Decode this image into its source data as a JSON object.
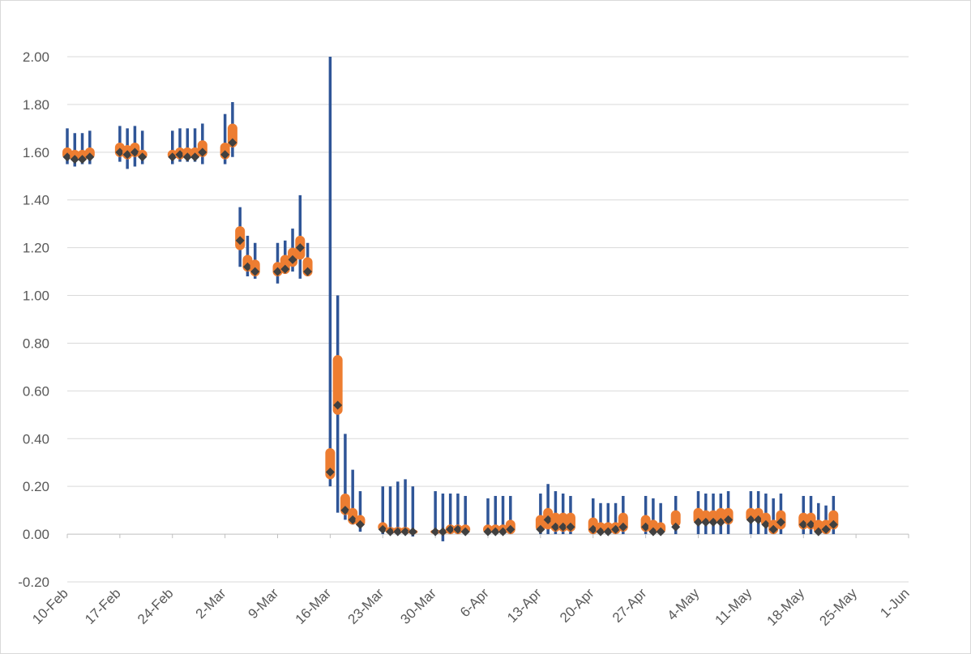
{
  "chart_data": {
    "type": "candlestick-boxplot",
    "title": "",
    "xlabel": "",
    "ylabel": "",
    "ylim": [
      -0.2,
      2.0
    ],
    "xlim": [
      "2020-02-10",
      "2020-06-01"
    ],
    "y_ticks": [
      "-0.20",
      "0.00",
      "0.20",
      "0.40",
      "0.60",
      "0.80",
      "1.00",
      "1.20",
      "1.40",
      "1.60",
      "1.80",
      "2.00"
    ],
    "x_ticks": [
      "10-Feb",
      "17-Feb",
      "24-Feb",
      "2-Mar",
      "9-Mar",
      "16-Mar",
      "23-Mar",
      "30-Mar",
      "6-Apr",
      "13-Apr",
      "20-Apr",
      "27-Apr",
      "4-May",
      "11-May",
      "18-May",
      "25-May",
      "1-Jun"
    ],
    "grid": "horizontal",
    "colors": {
      "whisker": "#2f5597",
      "box": "#ed7d31",
      "marker": "#404040",
      "grid": "#d9d9d9",
      "axis": "#bfbfbf",
      "text": "#595959"
    },
    "series": [
      {
        "date": "2020-02-10",
        "low": 1.55,
        "high": 1.7,
        "q1": 1.57,
        "q3": 1.62,
        "value": 1.58
      },
      {
        "date": "2020-02-11",
        "low": 1.54,
        "high": 1.68,
        "q1": 1.56,
        "q3": 1.61,
        "value": 1.57
      },
      {
        "date": "2020-02-12",
        "low": 1.55,
        "high": 1.68,
        "q1": 1.56,
        "q3": 1.61,
        "value": 1.57
      },
      {
        "date": "2020-02-13",
        "low": 1.55,
        "high": 1.69,
        "q1": 1.57,
        "q3": 1.62,
        "value": 1.58
      },
      {
        "date": "2020-02-17",
        "low": 1.56,
        "high": 1.71,
        "q1": 1.58,
        "q3": 1.64,
        "value": 1.6
      },
      {
        "date": "2020-02-18",
        "low": 1.53,
        "high": 1.7,
        "q1": 1.57,
        "q3": 1.63,
        "value": 1.59
      },
      {
        "date": "2020-02-19",
        "low": 1.54,
        "high": 1.71,
        "q1": 1.58,
        "q3": 1.64,
        "value": 1.6
      },
      {
        "date": "2020-02-20",
        "low": 1.55,
        "high": 1.69,
        "q1": 1.57,
        "q3": 1.61,
        "value": 1.58
      },
      {
        "date": "2020-02-24",
        "low": 1.55,
        "high": 1.69,
        "q1": 1.57,
        "q3": 1.61,
        "value": 1.58
      },
      {
        "date": "2020-02-25",
        "low": 1.56,
        "high": 1.7,
        "q1": 1.57,
        "q3": 1.62,
        "value": 1.59
      },
      {
        "date": "2020-02-26",
        "low": 1.56,
        "high": 1.7,
        "q1": 1.57,
        "q3": 1.62,
        "value": 1.58
      },
      {
        "date": "2020-02-27",
        "low": 1.56,
        "high": 1.7,
        "q1": 1.57,
        "q3": 1.62,
        "value": 1.58
      },
      {
        "date": "2020-02-28",
        "low": 1.55,
        "high": 1.72,
        "q1": 1.58,
        "q3": 1.65,
        "value": 1.6
      },
      {
        "date": "2020-03-02",
        "low": 1.55,
        "high": 1.76,
        "q1": 1.57,
        "q3": 1.64,
        "value": 1.59
      },
      {
        "date": "2020-03-03",
        "low": 1.58,
        "high": 1.81,
        "q1": 1.62,
        "q3": 1.72,
        "value": 1.64
      },
      {
        "date": "2020-03-04",
        "low": 1.12,
        "high": 1.37,
        "q1": 1.19,
        "q3": 1.29,
        "value": 1.23
      },
      {
        "date": "2020-03-05",
        "low": 1.08,
        "high": 1.25,
        "q1": 1.1,
        "q3": 1.17,
        "value": 1.12
      },
      {
        "date": "2020-03-06",
        "low": 1.07,
        "high": 1.22,
        "q1": 1.08,
        "q3": 1.15,
        "value": 1.1
      },
      {
        "date": "2020-03-09",
        "low": 1.05,
        "high": 1.22,
        "q1": 1.08,
        "q3": 1.14,
        "value": 1.1
      },
      {
        "date": "2020-03-10",
        "low": 1.09,
        "high": 1.23,
        "q1": 1.09,
        "q3": 1.17,
        "value": 1.11
      },
      {
        "date": "2020-03-11",
        "low": 1.1,
        "high": 1.28,
        "q1": 1.12,
        "q3": 1.2,
        "value": 1.15
      },
      {
        "date": "2020-03-12",
        "low": 1.07,
        "high": 1.42,
        "q1": 1.15,
        "q3": 1.25,
        "value": 1.2
      },
      {
        "date": "2020-03-13",
        "low": 1.08,
        "high": 1.22,
        "q1": 1.08,
        "q3": 1.16,
        "value": 1.1
      },
      {
        "date": "2020-03-16",
        "low": 0.2,
        "high": 2.0,
        "q1": 0.23,
        "q3": 0.36,
        "value": 0.26
      },
      {
        "date": "2020-03-17",
        "low": 0.09,
        "high": 1.0,
        "q1": 0.5,
        "q3": 0.75,
        "value": 0.54
      },
      {
        "date": "2020-03-18",
        "low": 0.06,
        "high": 0.42,
        "q1": 0.08,
        "q3": 0.17,
        "value": 0.1
      },
      {
        "date": "2020-03-19",
        "low": 0.04,
        "high": 0.27,
        "q1": 0.04,
        "q3": 0.11,
        "value": 0.06
      },
      {
        "date": "2020-03-20",
        "low": 0.01,
        "high": 0.18,
        "q1": 0.03,
        "q3": 0.08,
        "value": 0.04
      },
      {
        "date": "2020-03-23",
        "low": 0.0,
        "high": 0.2,
        "q1": 0.01,
        "q3": 0.05,
        "value": 0.02
      },
      {
        "date": "2020-03-24",
        "low": 0.0,
        "high": 0.2,
        "q1": 0.0,
        "q3": 0.03,
        "value": 0.01
      },
      {
        "date": "2020-03-25",
        "low": 0.0,
        "high": 0.22,
        "q1": 0.0,
        "q3": 0.03,
        "value": 0.01
      },
      {
        "date": "2020-03-26",
        "low": 0.0,
        "high": 0.23,
        "q1": 0.0,
        "q3": 0.03,
        "value": 0.01
      },
      {
        "date": "2020-03-27",
        "low": -0.01,
        "high": 0.2,
        "q1": 0.0,
        "q3": 0.02,
        "value": 0.01
      },
      {
        "date": "2020-03-30",
        "low": 0.0,
        "high": 0.18,
        "q1": 0.0,
        "q3": 0.02,
        "value": 0.01
      },
      {
        "date": "2020-03-31",
        "low": -0.03,
        "high": 0.17,
        "q1": 0.0,
        "q3": 0.02,
        "value": 0.01
      },
      {
        "date": "2020-04-01",
        "low": 0.0,
        "high": 0.17,
        "q1": 0.0,
        "q3": 0.04,
        "value": 0.02
      },
      {
        "date": "2020-04-02",
        "low": 0.0,
        "high": 0.17,
        "q1": 0.0,
        "q3": 0.04,
        "value": 0.02
      },
      {
        "date": "2020-04-03",
        "low": 0.0,
        "high": 0.16,
        "q1": 0.0,
        "q3": 0.04,
        "value": 0.01
      },
      {
        "date": "2020-04-06",
        "low": 0.0,
        "high": 0.15,
        "q1": 0.0,
        "q3": 0.04,
        "value": 0.01
      },
      {
        "date": "2020-04-07",
        "low": 0.0,
        "high": 0.16,
        "q1": 0.0,
        "q3": 0.04,
        "value": 0.01
      },
      {
        "date": "2020-04-08",
        "low": 0.0,
        "high": 0.16,
        "q1": 0.0,
        "q3": 0.04,
        "value": 0.01
      },
      {
        "date": "2020-04-09",
        "low": 0.0,
        "high": 0.16,
        "q1": 0.0,
        "q3": 0.06,
        "value": 0.02
      },
      {
        "date": "2020-04-13",
        "low": 0.0,
        "high": 0.17,
        "q1": 0.01,
        "q3": 0.08,
        "value": 0.02
      },
      {
        "date": "2020-04-14",
        "low": 0.0,
        "high": 0.21,
        "q1": 0.02,
        "q3": 0.11,
        "value": 0.06
      },
      {
        "date": "2020-04-15",
        "low": 0.0,
        "high": 0.18,
        "q1": 0.01,
        "q3": 0.09,
        "value": 0.03
      },
      {
        "date": "2020-04-16",
        "low": 0.0,
        "high": 0.17,
        "q1": 0.01,
        "q3": 0.09,
        "value": 0.03
      },
      {
        "date": "2020-04-17",
        "low": 0.0,
        "high": 0.16,
        "q1": 0.01,
        "q3": 0.09,
        "value": 0.03
      },
      {
        "date": "2020-04-20",
        "low": 0.0,
        "high": 0.15,
        "q1": 0.0,
        "q3": 0.07,
        "value": 0.02
      },
      {
        "date": "2020-04-21",
        "low": 0.0,
        "high": 0.13,
        "q1": 0.0,
        "q3": 0.05,
        "value": 0.01
      },
      {
        "date": "2020-04-22",
        "low": 0.0,
        "high": 0.13,
        "q1": 0.0,
        "q3": 0.05,
        "value": 0.01
      },
      {
        "date": "2020-04-23",
        "low": 0.0,
        "high": 0.13,
        "q1": 0.0,
        "q3": 0.05,
        "value": 0.02
      },
      {
        "date": "2020-04-24",
        "low": 0.0,
        "high": 0.16,
        "q1": 0.01,
        "q3": 0.09,
        "value": 0.03
      },
      {
        "date": "2020-04-27",
        "low": 0.0,
        "high": 0.16,
        "q1": 0.01,
        "q3": 0.08,
        "value": 0.03
      },
      {
        "date": "2020-04-28",
        "low": 0.0,
        "high": 0.15,
        "q1": 0.0,
        "q3": 0.06,
        "value": 0.01
      },
      {
        "date": "2020-04-29",
        "low": 0.0,
        "high": 0.13,
        "q1": 0.0,
        "q3": 0.05,
        "value": 0.01
      },
      {
        "date": "2020-05-01",
        "low": 0.0,
        "high": 0.16,
        "q1": 0.03,
        "q3": 0.1,
        "value": 0.03
      },
      {
        "date": "2020-05-04",
        "low": 0.0,
        "high": 0.18,
        "q1": 0.04,
        "q3": 0.11,
        "value": 0.05
      },
      {
        "date": "2020-05-05",
        "low": 0.0,
        "high": 0.17,
        "q1": 0.04,
        "q3": 0.1,
        "value": 0.05
      },
      {
        "date": "2020-05-06",
        "low": 0.0,
        "high": 0.17,
        "q1": 0.04,
        "q3": 0.1,
        "value": 0.05
      },
      {
        "date": "2020-05-07",
        "low": 0.0,
        "high": 0.17,
        "q1": 0.04,
        "q3": 0.11,
        "value": 0.05
      },
      {
        "date": "2020-05-08",
        "low": 0.0,
        "high": 0.18,
        "q1": 0.04,
        "q3": 0.11,
        "value": 0.06
      },
      {
        "date": "2020-05-11",
        "low": 0.0,
        "high": 0.18,
        "q1": 0.05,
        "q3": 0.11,
        "value": 0.06
      },
      {
        "date": "2020-05-12",
        "low": 0.0,
        "high": 0.18,
        "q1": 0.05,
        "q3": 0.11,
        "value": 0.06
      },
      {
        "date": "2020-05-13",
        "low": 0.0,
        "high": 0.17,
        "q1": 0.03,
        "q3": 0.09,
        "value": 0.04
      },
      {
        "date": "2020-05-14",
        "low": 0.0,
        "high": 0.15,
        "q1": 0.0,
        "q3": 0.06,
        "value": 0.02
      },
      {
        "date": "2020-05-15",
        "low": 0.0,
        "high": 0.17,
        "q1": 0.02,
        "q3": 0.1,
        "value": 0.05
      },
      {
        "date": "2020-05-18",
        "low": 0.0,
        "high": 0.16,
        "q1": 0.02,
        "q3": 0.09,
        "value": 0.04
      },
      {
        "date": "2020-05-19",
        "low": 0.0,
        "high": 0.16,
        "q1": 0.02,
        "q3": 0.09,
        "value": 0.04
      },
      {
        "date": "2020-05-20",
        "low": 0.0,
        "high": 0.13,
        "q1": 0.0,
        "q3": 0.06,
        "value": 0.01
      },
      {
        "date": "2020-05-21",
        "low": 0.0,
        "high": 0.12,
        "q1": 0.0,
        "q3": 0.06,
        "value": 0.02
      },
      {
        "date": "2020-05-22",
        "low": 0.0,
        "high": 0.16,
        "q1": 0.02,
        "q3": 0.1,
        "value": 0.04
      }
    ]
  }
}
